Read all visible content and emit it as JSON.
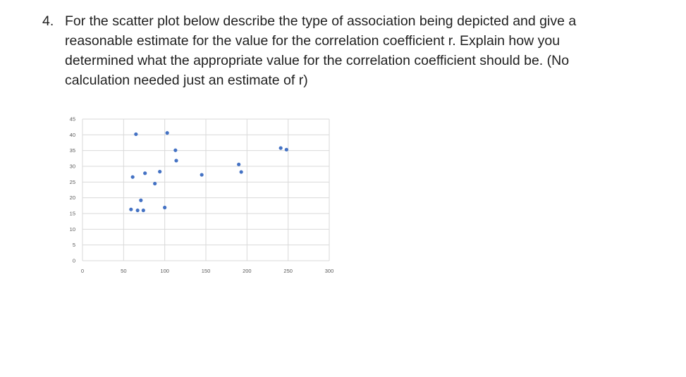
{
  "question": {
    "number": "4.",
    "text": "For the scatter plot below describe the type of association being depicted and give a reasonable estimate for the value for the correlation coefficient r. Explain how you determined what the appropriate value for the correlation coefficient should be.  (No calculation needed just an estimate of r)"
  },
  "chart_data": {
    "type": "scatter",
    "title": "",
    "xlabel": "",
    "ylabel": "",
    "xlim": [
      0,
      300
    ],
    "ylim": [
      0,
      45
    ],
    "xticks": [
      "0",
      "50",
      "100",
      "150",
      "200",
      "250",
      "300"
    ],
    "yticks": [
      "0",
      "5",
      "10",
      "15",
      "20",
      "25",
      "30",
      "35",
      "40",
      "45"
    ],
    "grid": true,
    "series": [
      {
        "color": "#4472C4",
        "points": [
          {
            "x": 65,
            "y": 40.2
          },
          {
            "x": 103,
            "y": 40.6
          },
          {
            "x": 113,
            "y": 35.1
          },
          {
            "x": 114,
            "y": 31.8
          },
          {
            "x": 61,
            "y": 26.6
          },
          {
            "x": 76,
            "y": 27.8
          },
          {
            "x": 94,
            "y": 28.3
          },
          {
            "x": 88,
            "y": 24.5
          },
          {
            "x": 145,
            "y": 27.3
          },
          {
            "x": 190,
            "y": 30.6
          },
          {
            "x": 193,
            "y": 28.2
          },
          {
            "x": 241,
            "y": 35.8
          },
          {
            "x": 248,
            "y": 35.3
          },
          {
            "x": 71,
            "y": 19.2
          },
          {
            "x": 59,
            "y": 16.3
          },
          {
            "x": 67,
            "y": 16.0
          },
          {
            "x": 74,
            "y": 16.0
          },
          {
            "x": 100,
            "y": 16.9
          }
        ]
      }
    ]
  }
}
